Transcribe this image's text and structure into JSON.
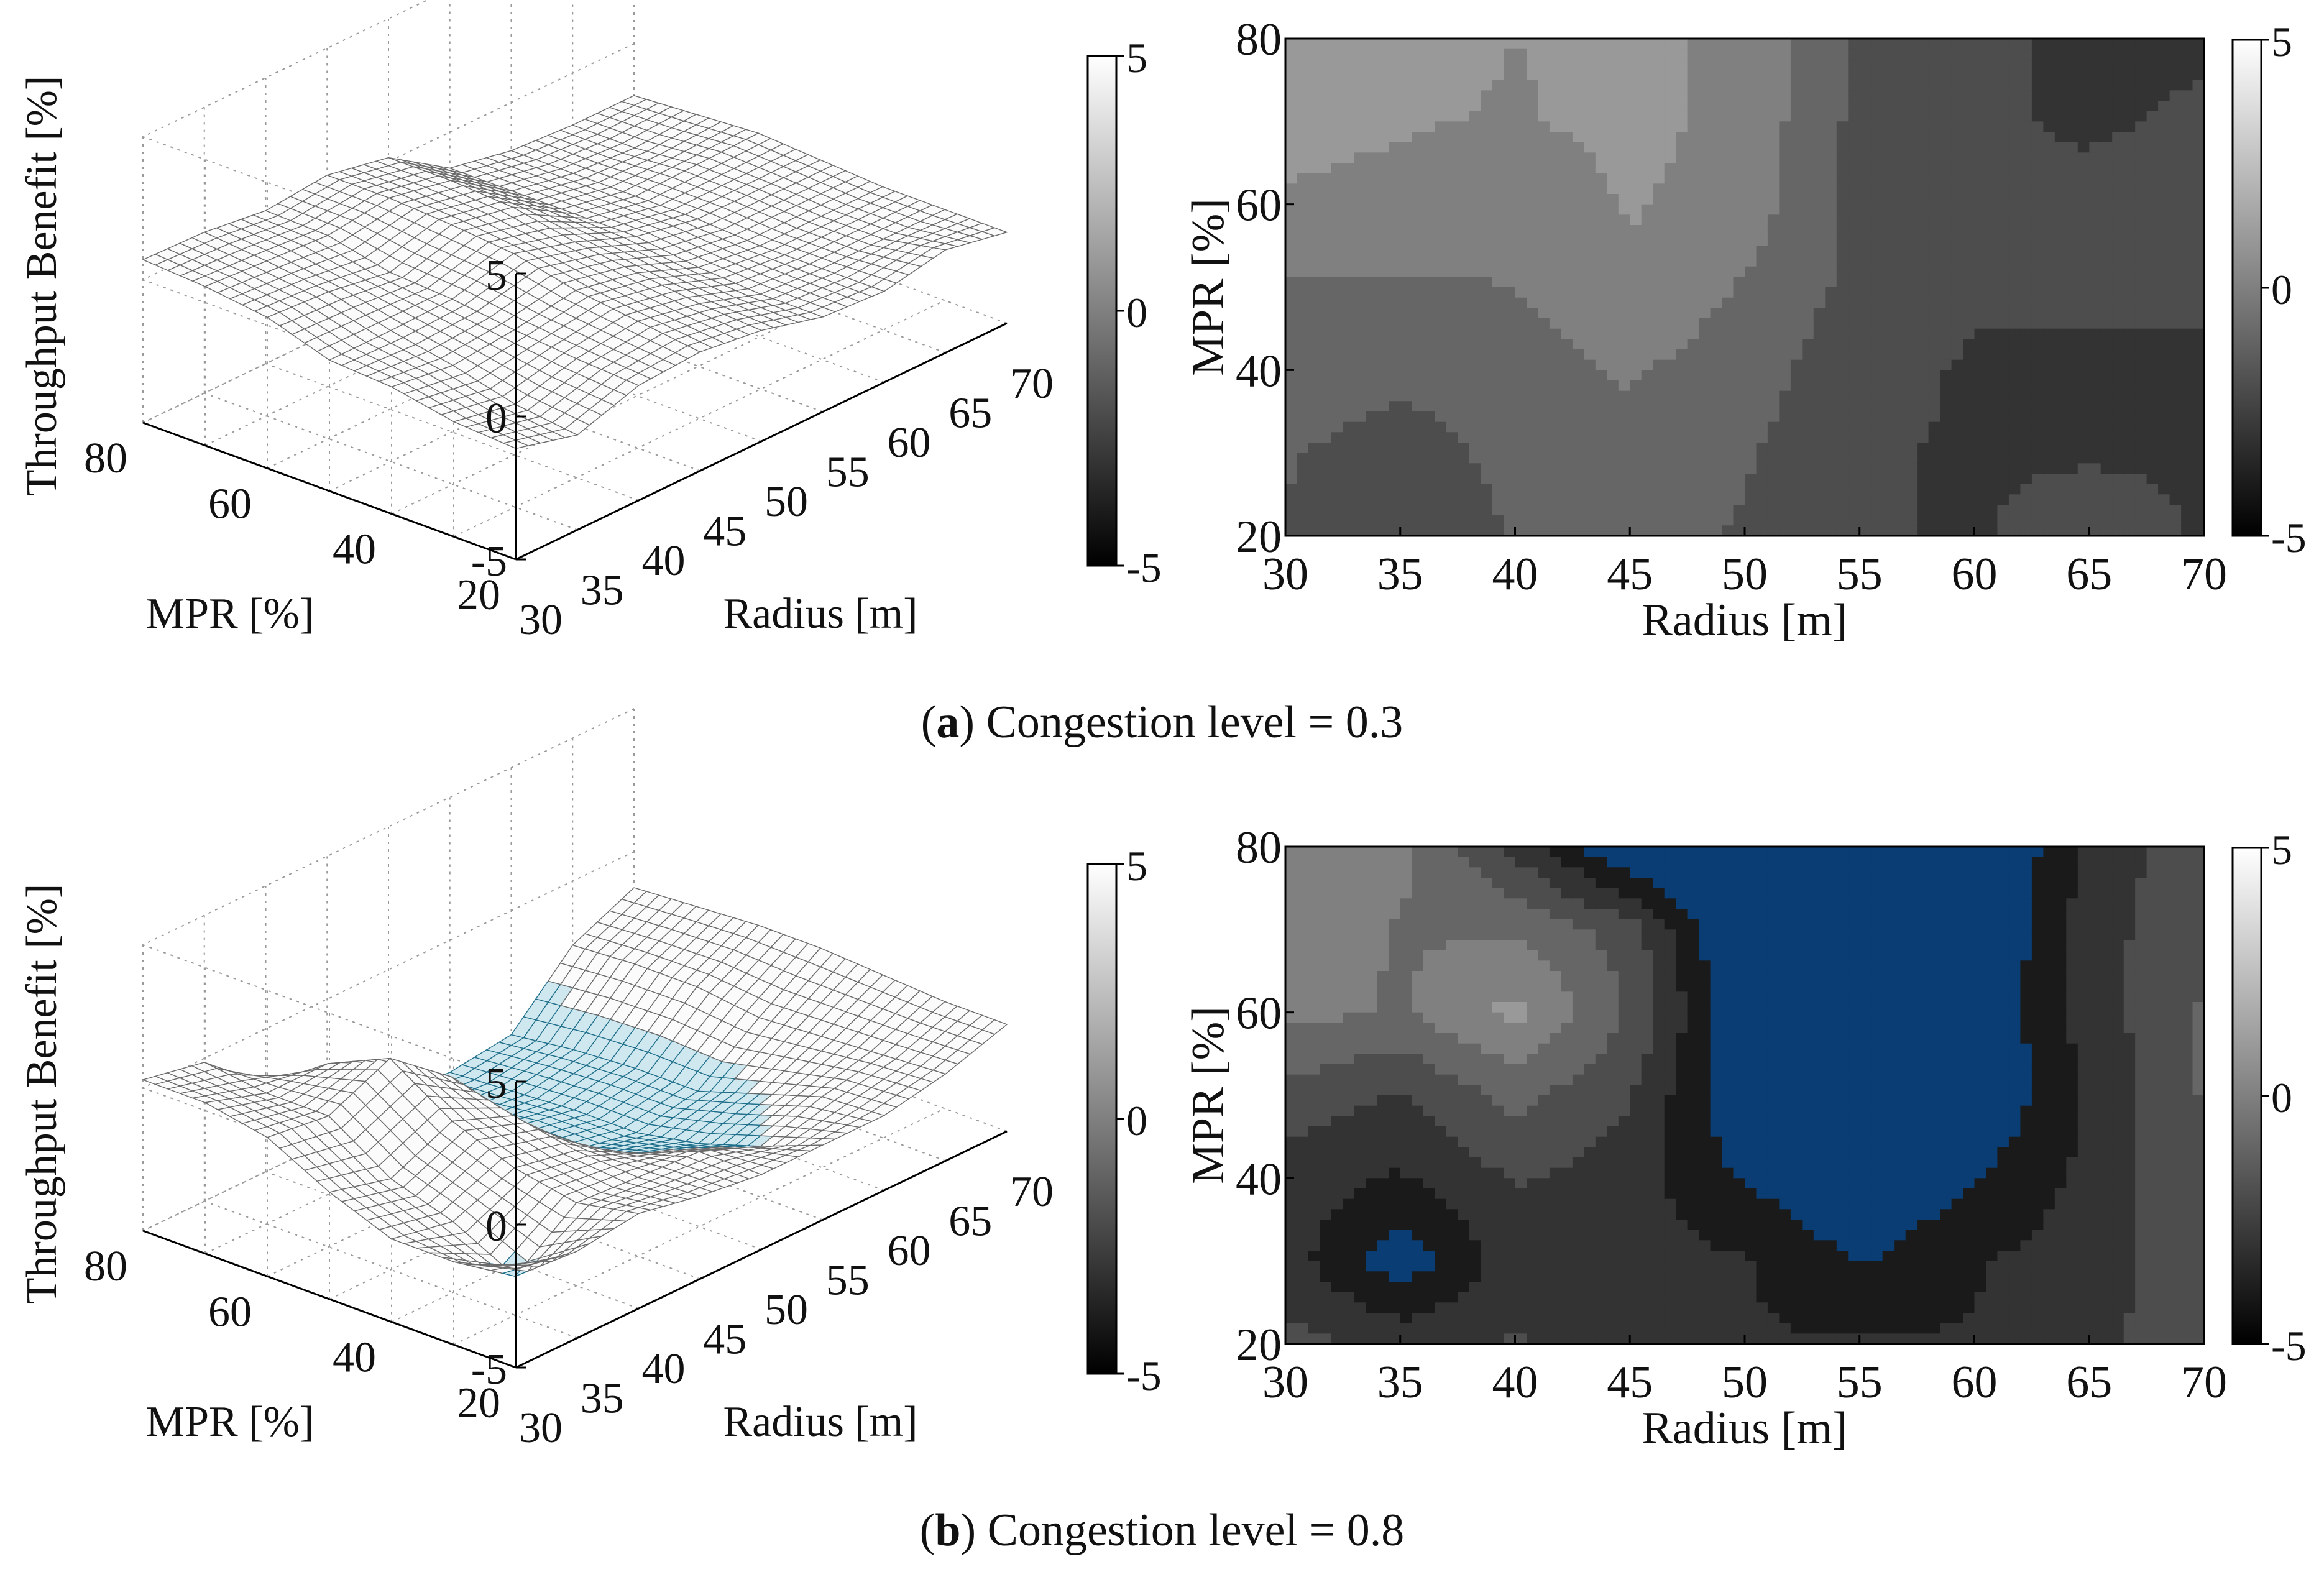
{
  "chart_data": [
    {
      "id": "a",
      "caption_letter": "a",
      "caption_text": "Congestion level = 0.3",
      "surface": {
        "type": "surface3d",
        "zlabel": "Throughput Benefit [%]",
        "xlabel": "Radius [m]",
        "ylabel": "MPR [%]",
        "z_ticks": [
          "5",
          "0",
          "-5"
        ],
        "x_ticks": [
          "30",
          "35",
          "40",
          "45",
          "50",
          "55",
          "60",
          "65",
          "70"
        ],
        "y_ticks": [
          "80",
          "60",
          "40",
          "20"
        ],
        "colorbar_ticks": [
          "5",
          "0",
          "-5"
        ],
        "zlim": [
          -5,
          5
        ]
      },
      "contour": {
        "type": "heatmap",
        "xlabel": "Radius [m]",
        "ylabel": "MPR [%]",
        "x_ticks": [
          "30",
          "35",
          "40",
          "45",
          "50",
          "55",
          "60",
          "65",
          "70"
        ],
        "y_ticks": [
          "80",
          "60",
          "40",
          "20"
        ],
        "colorbar_ticks": [
          "5",
          "0",
          "-5"
        ],
        "xlim": [
          30,
          70
        ],
        "ylim": [
          20,
          80
        ],
        "clim": [
          -5,
          5
        ],
        "x": [
          30,
          35,
          40,
          45,
          50,
          55,
          60,
          65,
          70
        ],
        "y": [
          20,
          30,
          40,
          50,
          60,
          70,
          80
        ],
        "z": [
          [
            -1.6,
            -2.4,
            -1.4,
            -1.2,
            -1.6,
            -2.4,
            -2.6,
            -2.0,
            -2.6
          ],
          [
            -1.4,
            -2.0,
            -1.2,
            -0.8,
            -1.4,
            -2.4,
            -2.6,
            -2.6,
            -2.6
          ],
          [
            -0.8,
            -1.2,
            -0.9,
            -0.4,
            -1.0,
            -2.2,
            -2.6,
            -2.6,
            -2.6
          ],
          [
            -0.6,
            -0.6,
            -0.5,
            0.3,
            -0.6,
            -1.8,
            -2.4,
            -2.4,
            -2.4
          ],
          [
            0.4,
            0.2,
            -0.3,
            0.6,
            0.0,
            -1.8,
            -2.4,
            -2.3,
            -2.2
          ],
          [
            0.8,
            0.6,
            0.4,
            0.8,
            0.2,
            -1.8,
            -2.4,
            -2.6,
            -2.4
          ],
          [
            1.0,
            0.9,
            0.5,
            0.8,
            0.2,
            -1.8,
            -2.4,
            -2.6,
            -2.6
          ]
        ]
      }
    },
    {
      "id": "b",
      "caption_letter": "b",
      "caption_text": "Congestion level = 0.8",
      "surface": {
        "type": "surface3d",
        "zlabel": "Throughput Benefit [%]",
        "xlabel": "Radius [m]",
        "ylabel": "MPR [%]",
        "z_ticks": [
          "5",
          "0",
          "-5"
        ],
        "x_ticks": [
          "30",
          "35",
          "40",
          "45",
          "50",
          "55",
          "60",
          "65",
          "70"
        ],
        "y_ticks": [
          "80",
          "60",
          "40",
          "20"
        ],
        "colorbar_ticks": [
          "5",
          "0",
          "-5"
        ],
        "zlim": [
          -5,
          5
        ]
      },
      "contour": {
        "type": "heatmap",
        "xlabel": "Radius [m]",
        "ylabel": "MPR [%]",
        "x_ticks": [
          "30",
          "35",
          "40",
          "45",
          "50",
          "55",
          "60",
          "65",
          "70"
        ],
        "y_ticks": [
          "80",
          "60",
          "40",
          "20"
        ],
        "colorbar_ticks": [
          "5",
          "0",
          "-5"
        ],
        "xlim": [
          30,
          70
        ],
        "ylim": [
          20,
          80
        ],
        "clim": [
          -5,
          5
        ],
        "x": [
          30,
          35,
          40,
          45,
          50,
          55,
          60,
          65,
          70
        ],
        "y": [
          20,
          30,
          40,
          50,
          60,
          70,
          80
        ],
        "z": [
          [
            -2.2,
            -2.8,
            -2.4,
            -3.0,
            -3.4,
            -3.4,
            -3.4,
            -2.8,
            -1.8
          ],
          [
            -3.0,
            -5.2,
            -3.0,
            -3.2,
            -3.4,
            -4.6,
            -3.6,
            -3.0,
            -1.8
          ],
          [
            -3.0,
            -3.6,
            -2.4,
            -3.0,
            -4.6,
            -5.6,
            -4.6,
            -3.2,
            -1.6
          ],
          [
            -1.8,
            -2.6,
            -1.2,
            -2.4,
            -5.6,
            -6.2,
            -5.6,
            -3.4,
            -1.4
          ],
          [
            -0.2,
            -0.6,
            0.8,
            -1.6,
            -5.6,
            -6.2,
            -5.6,
            -3.0,
            -1.4
          ],
          [
            0.4,
            -0.6,
            -0.6,
            -2.0,
            -6.2,
            -6.4,
            -5.8,
            -3.0,
            -1.6
          ],
          [
            0.4,
            -0.2,
            -2.8,
            -5.8,
            -6.4,
            -6.6,
            -6.2,
            -3.2,
            -1.8
          ]
        ]
      }
    }
  ],
  "colors": {
    "negative_highlight": "#0a3d73",
    "contour_line": "#111111",
    "axis": "#000000",
    "grid": "#9a9a9a"
  }
}
